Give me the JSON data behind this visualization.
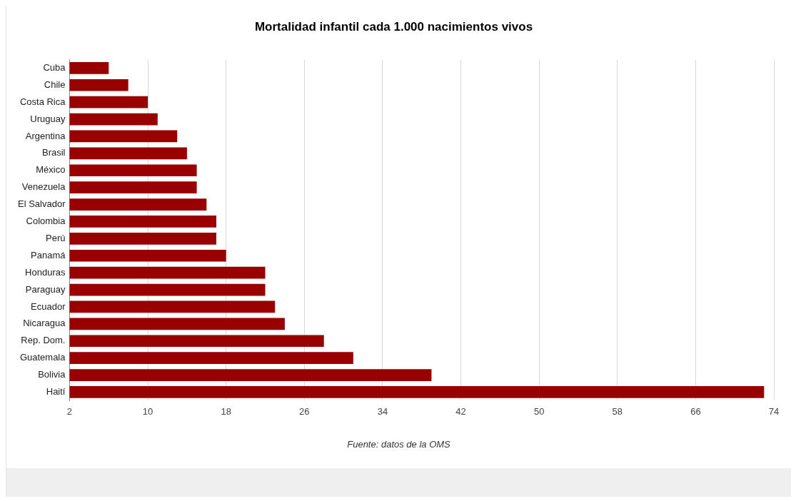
{
  "chart_data": {
    "type": "bar",
    "orientation": "horizontal",
    "title": "Mortalidad infantil cada 1.000 nacimientos vivos",
    "categories": [
      "Cuba",
      "Chile",
      "Costa Rica",
      "Uruguay",
      "Argentina",
      "Brasil",
      "México",
      "Venezuela",
      "El Salvador",
      "Colombia",
      "Perú",
      "Panamá",
      "Honduras",
      "Paraguay",
      "Ecuador",
      "Nicaragua",
      "Rep. Dom.",
      "Guatemala",
      "Bolivia",
      "Haití"
    ],
    "values": [
      6,
      8,
      10,
      11,
      13,
      14,
      15,
      15,
      16,
      17,
      17,
      18,
      22,
      22,
      23,
      24,
      28,
      31,
      39,
      73
    ],
    "color": "#990000",
    "xlim": [
      2,
      74
    ],
    "xticks": [
      2,
      10,
      18,
      26,
      34,
      42,
      50,
      58,
      66,
      74
    ],
    "grid": "x",
    "legend": false,
    "annotations": [
      "Fuente: datos de la OMS"
    ]
  }
}
